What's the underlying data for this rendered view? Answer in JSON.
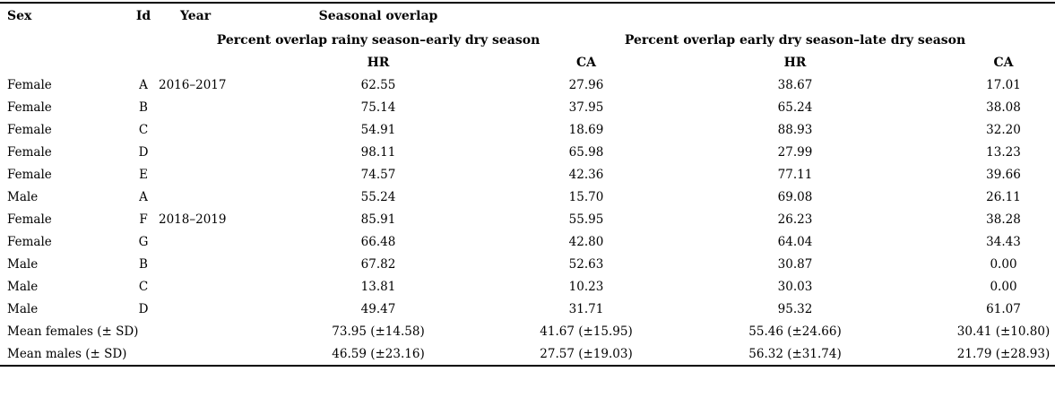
{
  "table": {
    "header": {
      "sex": "Sex",
      "id": "Id",
      "year": "Year",
      "seasonal_overlap": "Seasonal overlap",
      "group1": "Percent overlap rainy season–early dry season",
      "group2": "Percent overlap early dry season–late dry season",
      "hr1": "HR",
      "ca1": "CA",
      "hr2": "HR",
      "ca2": "CA"
    },
    "rows": [
      {
        "sex": "Female",
        "id": "A",
        "year": "2016–2017",
        "hr1": "62.55",
        "ca1": "27.96",
        "hr2": "38.67",
        "ca2": "17.01"
      },
      {
        "sex": "Female",
        "id": "B",
        "year": "",
        "hr1": "75.14",
        "ca1": "37.95",
        "hr2": "65.24",
        "ca2": "38.08"
      },
      {
        "sex": "Female",
        "id": "C",
        "year": "",
        "hr1": "54.91",
        "ca1": "18.69",
        "hr2": "88.93",
        "ca2": "32.20"
      },
      {
        "sex": "Female",
        "id": "D",
        "year": "",
        "hr1": "98.11",
        "ca1": "65.98",
        "hr2": "27.99",
        "ca2": "13.23"
      },
      {
        "sex": "Female",
        "id": "E",
        "year": "",
        "hr1": "74.57",
        "ca1": "42.36",
        "hr2": "77.11",
        "ca2": "39.66"
      },
      {
        "sex": "Male",
        "id": "A",
        "year": "",
        "hr1": "55.24",
        "ca1": "15.70",
        "hr2": "69.08",
        "ca2": "26.11"
      },
      {
        "sex": "Female",
        "id": "F",
        "year": "2018–2019",
        "hr1": "85.91",
        "ca1": "55.95",
        "hr2": "26.23",
        "ca2": "38.28"
      },
      {
        "sex": "Female",
        "id": "G",
        "year": "",
        "hr1": "66.48",
        "ca1": "42.80",
        "hr2": "64.04",
        "ca2": "34.43"
      },
      {
        "sex": "Male",
        "id": "B",
        "year": "",
        "hr1": "67.82",
        "ca1": "52.63",
        "hr2": "30.87",
        "ca2": "0.00"
      },
      {
        "sex": "Male",
        "id": "C",
        "year": "",
        "hr1": "13.81",
        "ca1": "10.23",
        "hr2": "30.03",
        "ca2": "0.00"
      },
      {
        "sex": "Male",
        "id": "D",
        "year": "",
        "hr1": "49.47",
        "ca1": "31.71",
        "hr2": "95.32",
        "ca2": "61.07"
      }
    ],
    "summary_rows": [
      {
        "label": "Mean females (± SD)",
        "hr1": "73.95 (±14.58)",
        "ca1": "41.67 (±15.95)",
        "hr2": "55.46 (±24.66)",
        "ca2": "30.41 (±10.80)"
      },
      {
        "label": "Mean males (± SD)",
        "hr1": "46.59 (±23.16)",
        "ca1": "27.57 (±19.03)",
        "hr2": "56.32 (±31.74)",
        "ca2": "21.79 (±28.93)"
      }
    ],
    "colors": {
      "text": "#000000",
      "background": "#ffffff",
      "rule": "#000000"
    }
  }
}
